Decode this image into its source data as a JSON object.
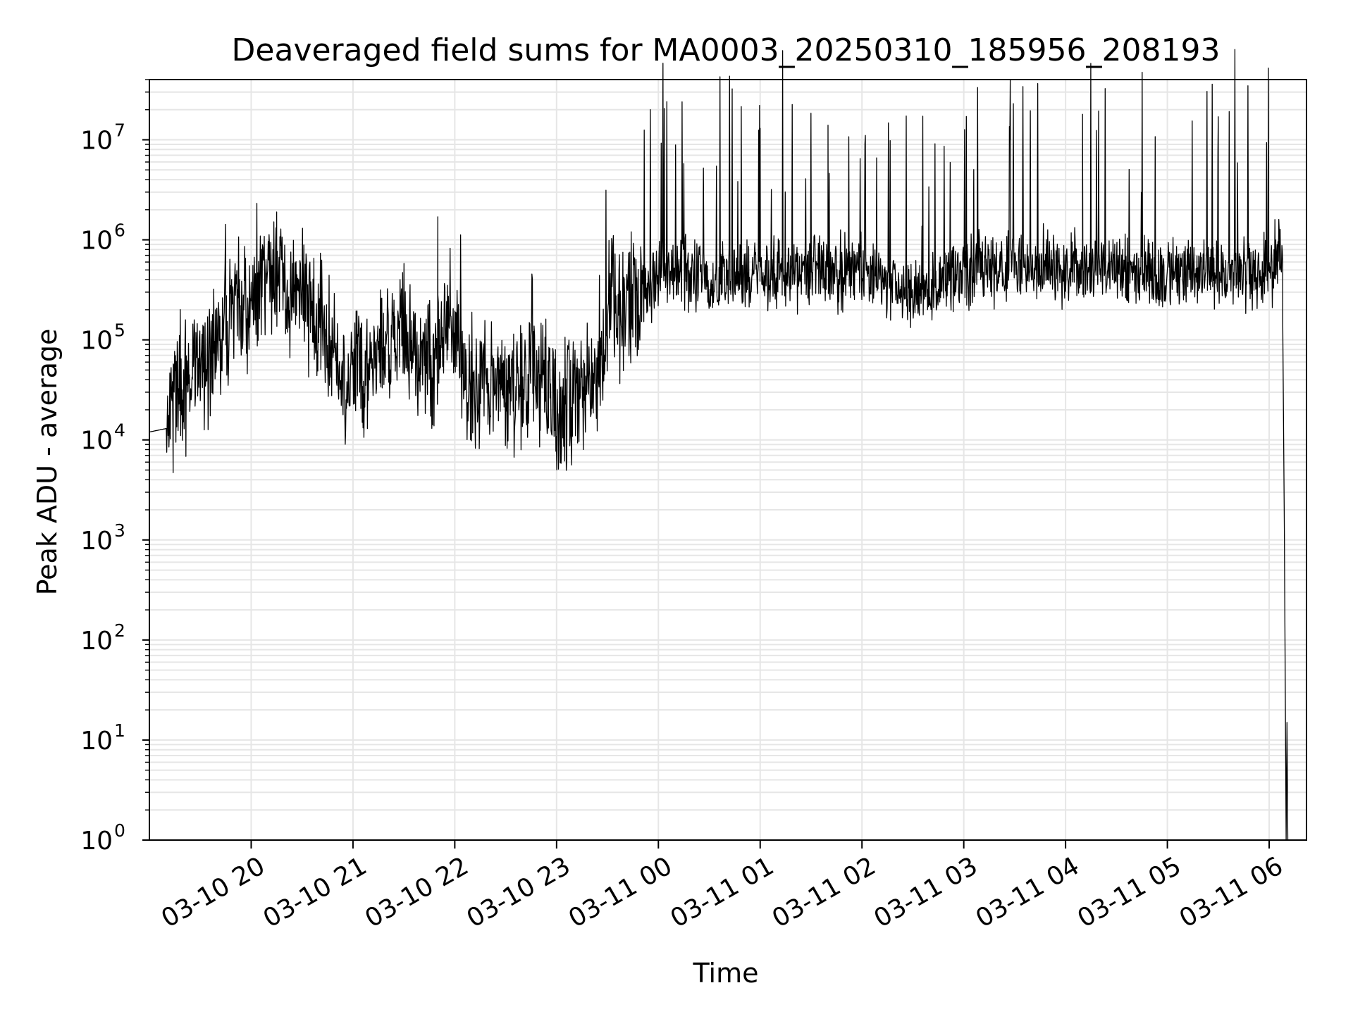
{
  "chart_data": {
    "type": "line",
    "title": "Deaveraged field sums for MA0003_20250310_185956_208193",
    "xlabel": "Time",
    "ylabel": "Peak ADU - average",
    "yscale": "log",
    "ylim": [
      1,
      40000000
    ],
    "xlim": [
      "2025-03-10 19:00",
      "2025-03-11 06:22"
    ],
    "grid": true,
    "x_ticks": [
      {
        "t": "2025-03-10 20:00",
        "label": "03-10 20"
      },
      {
        "t": "2025-03-10 21:00",
        "label": "03-10 21"
      },
      {
        "t": "2025-03-10 22:00",
        "label": "03-10 22"
      },
      {
        "t": "2025-03-10 23:00",
        "label": "03-10 23"
      },
      {
        "t": "2025-03-11 00:00",
        "label": "03-11 00"
      },
      {
        "t": "2025-03-11 01:00",
        "label": "03-11 01"
      },
      {
        "t": "2025-03-11 02:00",
        "label": "03-11 02"
      },
      {
        "t": "2025-03-11 03:00",
        "label": "03-11 03"
      },
      {
        "t": "2025-03-11 04:00",
        "label": "03-11 04"
      },
      {
        "t": "2025-03-11 05:00",
        "label": "03-11 05"
      },
      {
        "t": "2025-03-11 06:00",
        "label": "03-11 06"
      }
    ],
    "y_ticks": [
      {
        "value": 1,
        "base": "10",
        "exp": "0"
      },
      {
        "value": 10,
        "base": "10",
        "exp": "1"
      },
      {
        "value": 100,
        "base": "10",
        "exp": "2"
      },
      {
        "value": 1000,
        "base": "10",
        "exp": "3"
      },
      {
        "value": 10000,
        "base": "10",
        "exp": "4"
      },
      {
        "value": 100000,
        "base": "10",
        "exp": "5"
      },
      {
        "value": 1000000,
        "base": "10",
        "exp": "6"
      },
      {
        "value": 10000000,
        "base": "10",
        "exp": "7"
      }
    ],
    "line_color": "#000000",
    "grid_color": "#e6e6e6",
    "series": [
      {
        "baseline": [
          [
            "2025-03-10 19:00",
            12000
          ],
          [
            "2025-03-10 19:10",
            13000
          ],
          [
            "2025-03-10 19:15",
            40000
          ],
          [
            "2025-03-10 19:25",
            45000
          ],
          [
            "2025-03-10 19:35",
            60000
          ],
          [
            "2025-03-10 19:45",
            150000
          ],
          [
            "2025-03-10 20:00",
            250000
          ],
          [
            "2025-03-10 20:15",
            450000
          ],
          [
            "2025-03-10 20:30",
            300000
          ],
          [
            "2025-03-10 20:45",
            120000
          ],
          [
            "2025-03-10 20:55",
            40000
          ],
          [
            "2025-03-10 21:15",
            80000
          ],
          [
            "2025-03-10 21:30",
            120000
          ],
          [
            "2025-03-10 21:45",
            50000
          ],
          [
            "2025-03-10 22:00",
            200000
          ],
          [
            "2025-03-10 22:05",
            40000
          ],
          [
            "2025-03-10 22:30",
            30000
          ],
          [
            "2025-03-10 22:45",
            40000
          ],
          [
            "2025-03-10 23:00",
            20000
          ],
          [
            "2025-03-10 23:15",
            30000
          ],
          [
            "2025-03-10 23:25",
            50000
          ],
          [
            "2025-03-10 23:30",
            200000
          ],
          [
            "2025-03-10 23:45",
            250000
          ],
          [
            "2025-03-11 00:00",
            450000
          ],
          [
            "2025-03-11 00:30",
            400000
          ],
          [
            "2025-03-11 01:00",
            450000
          ],
          [
            "2025-03-11 02:00",
            500000
          ],
          [
            "2025-03-11 02:30",
            300000
          ],
          [
            "2025-03-11 03:00",
            500000
          ],
          [
            "2025-03-11 04:00",
            550000
          ],
          [
            "2025-03-11 05:00",
            450000
          ],
          [
            "2025-03-11 05:30",
            500000
          ],
          [
            "2025-03-11 06:00",
            450000
          ],
          [
            "2025-03-11 06:05",
            700000
          ],
          [
            "2025-03-11 06:08",
            700000
          ]
        ],
        "dropoff": [
          [
            "2025-03-11 06:08",
            150000
          ],
          [
            "2025-03-11 06:09",
            1000
          ],
          [
            "2025-03-11 06:10",
            1
          ],
          [
            "2025-03-11 06:10.5",
            15
          ],
          [
            "2025-03-11 06:11",
            1
          ]
        ],
        "notable_peaks": [
          [
            "2025-03-10 20:15",
            1900000
          ],
          [
            "2025-03-10 21:50",
            1700000
          ],
          [
            "2025-03-11 01:00",
            13000000
          ],
          [
            "2025-03-11 01:40",
            14000000
          ],
          [
            "2025-03-11 04:10",
            18000000
          ],
          [
            "2025-03-11 05:30",
            17000000
          ]
        ],
        "notable_minima": [
          [
            "2025-03-10 19:14",
            4700
          ],
          [
            "2025-03-10 22:50",
            8500
          ]
        ]
      }
    ]
  }
}
